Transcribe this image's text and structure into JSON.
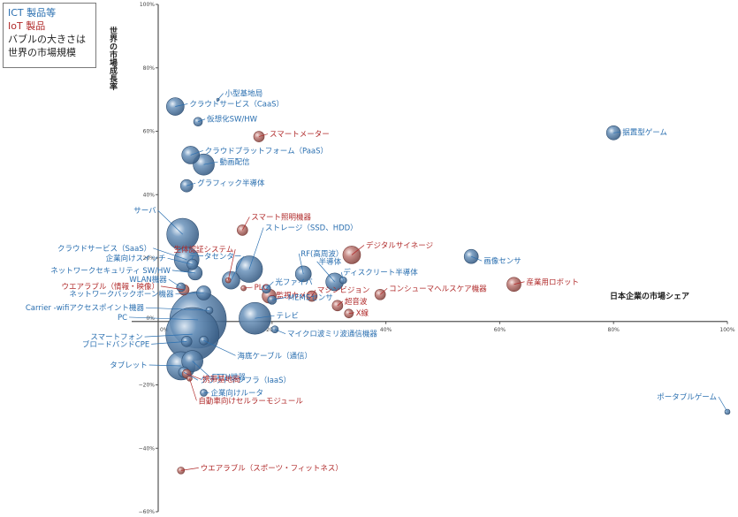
{
  "legend": {
    "ict": "ICT 製品等",
    "iot": "IoT 製品",
    "note1": "バブルの大きさは",
    "note2": "世界の市場規模"
  },
  "chart_data": {
    "type": "scatter",
    "xlabel": "日本企業の市場シェア",
    "ylabel": "世界の市場成長率",
    "xlim": [
      0,
      100
    ],
    "ylim": [
      -60,
      100
    ],
    "x_ticks": [
      "20%",
      "40%",
      "60%",
      "80%",
      "100%"
    ],
    "y_ticks": [
      "100%",
      "80%",
      "60%",
      "40%",
      "20%",
      "−20%",
      "−40%",
      "−60%"
    ],
    "origin_labels": [
      "0%",
      "0%"
    ],
    "colors": {
      "ict": "#5b86b0",
      "iot": "#b86a66",
      "ict_label": "#2a6fb0",
      "iot_label": "#b02a2a",
      "axis": "#555555"
    },
    "points": [
      {
        "label": "小型基地局",
        "cat": "ict",
        "x": 10.5,
        "y": 70.0,
        "r": 1.5
      },
      {
        "label": "クラウドサービス（CaaS）",
        "cat": "ict",
        "x": 3.0,
        "y": 67.8,
        "r": 10
      },
      {
        "label": "仮想化SW/HW",
        "cat": "ict",
        "x": 7.0,
        "y": 63.0,
        "r": 5
      },
      {
        "label": "スマートメーター",
        "cat": "iot",
        "x": 17.7,
        "y": 58.3,
        "r": 6
      },
      {
        "label": "クラウドプラットフォーム（PaaS）",
        "cat": "ict",
        "x": 5.7,
        "y": 52.5,
        "r": 10
      },
      {
        "label": "動画配信",
        "cat": "ict",
        "x": 8.0,
        "y": 49.5,
        "r": 12
      },
      {
        "label": "グラフィック半導体",
        "cat": "ict",
        "x": 5.0,
        "y": 42.8,
        "r": 7
      },
      {
        "label": "サーバ",
        "cat": "ict",
        "x": 4.3,
        "y": 27.5,
        "r": 18
      },
      {
        "label": "スマート照明機器",
        "cat": "iot",
        "x": 14.8,
        "y": 28.8,
        "r": 6
      },
      {
        "label": "デジタルサイネージ",
        "cat": "iot",
        "x": 34.0,
        "y": 21.0,
        "r": 10
      },
      {
        "label": "ストレージ（SSD、HDD）",
        "cat": "ict",
        "x": 16.0,
        "y": 16.5,
        "r": 15
      },
      {
        "label": "画像センサ",
        "cat": "ict",
        "x": 55.0,
        "y": 20.5,
        "r": 8
      },
      {
        "label": "生体認証システム",
        "cat": "iot",
        "x": 12.3,
        "y": 13.0,
        "r": 3
      },
      {
        "label": "データセンター",
        "cat": "ict",
        "x": 12.8,
        "y": 13.0,
        "r": 10
      },
      {
        "label": "RF(高周波）",
        "cat": "ict",
        "x": 25.5,
        "y": 15.0,
        "r": 9
      },
      {
        "label": "半導体",
        "cat": "ict",
        "x": 31.0,
        "y": 12.5,
        "r": 10
      },
      {
        "label": "ディスクリート半導体",
        "cat": "ict",
        "x": 32.5,
        "y": 13.0,
        "r": 4
      },
      {
        "label": "産業用ロボット",
        "cat": "iot",
        "x": 62.5,
        "y": 11.7,
        "r": 8
      },
      {
        "label": "クラウドサービス（SaaS）",
        "cat": "ict",
        "x": 5.0,
        "y": 19.5,
        "r": 14
      },
      {
        "label": "企業向けスイッチ",
        "cat": "ict",
        "x": 6.0,
        "y": 18.0,
        "r": 6
      },
      {
        "label": "ネットワークセキュリティ SW/HW",
        "cat": "ict",
        "x": 6.5,
        "y": 15.3,
        "r": 8
      },
      {
        "label": "WLAN機器",
        "cat": "ict",
        "x": 4.0,
        "y": 10.8,
        "r": 5
      },
      {
        "label": "ウエアラブル（情報・映像）",
        "cat": "iot",
        "x": 4.5,
        "y": 10.0,
        "r": 6
      },
      {
        "label": "ネットワークバックボーン機器",
        "cat": "ict",
        "x": 8.0,
        "y": 9.0,
        "r": 8
      },
      {
        "label": "光ファイバ",
        "cat": "ict",
        "x": 19.0,
        "y": 10.3,
        "r": 5
      },
      {
        "label": "PLC",
        "cat": "iot",
        "x": 15.0,
        "y": 10.5,
        "r": 3
      },
      {
        "label": "監視カメラ",
        "cat": "iot",
        "x": 19.5,
        "y": 8.0,
        "r": 8
      },
      {
        "label": "マシンビジョン",
        "cat": "iot",
        "x": 27.0,
        "y": 8.0,
        "r": 6
      },
      {
        "label": "MEMSセンサ",
        "cat": "ict",
        "x": 20.0,
        "y": 6.8,
        "r": 5
      },
      {
        "label": "コンシューマヘルスケア機器",
        "cat": "iot",
        "x": 39.0,
        "y": 8.5,
        "r": 6
      },
      {
        "label": "超音波",
        "cat": "iot",
        "x": 31.5,
        "y": 5.0,
        "r": 6
      },
      {
        "label": "X線",
        "cat": "iot",
        "x": 33.5,
        "y": 2.5,
        "r": 5
      },
      {
        "label": "Carrier -wifiアクセスポイント機器",
        "cat": "ict",
        "x": 9.0,
        "y": 3.5,
        "r": 4
      },
      {
        "label": "PC",
        "cat": "ict",
        "x": 7.0,
        "y": 0.5,
        "r": 32
      },
      {
        "label": "テレビ",
        "cat": "ict",
        "x": 17.0,
        "y": 1.0,
        "r": 18
      },
      {
        "label": "マイクロ波ミリ波通信機器",
        "cat": "ict",
        "x": 20.5,
        "y": -2.5,
        "r": 4
      },
      {
        "label": "スマートフォン",
        "cat": "ict",
        "x": 6.0,
        "y": -4.0,
        "r": 30
      },
      {
        "label": "ブロードバンドCPE",
        "cat": "ict",
        "x": 5.0,
        "y": -6.3,
        "r": 6
      },
      {
        "label": "海底ケーブル（通信）",
        "cat": "ict",
        "x": 8.0,
        "y": -6.0,
        "r": 5
      },
      {
        "label": "FTTH機器",
        "cat": "ict",
        "x": 6.0,
        "y": -12.5,
        "r": 12
      },
      {
        "label": "タブレット",
        "cat": "ict",
        "x": 4.0,
        "y": -14.0,
        "r": 16
      },
      {
        "label": "クラウドインフラ（IaaS）",
        "cat": "ict",
        "x": 4.5,
        "y": -16.0,
        "r": 6
      },
      {
        "label": "携帯基地局",
        "cat": "iot",
        "x": 5.0,
        "y": -16.5,
        "r": 5
      },
      {
        "label": "企業向けルータ",
        "cat": "ict",
        "x": 8.0,
        "y": -22.5,
        "r": 4
      },
      {
        "label": "自動車向けセルラーモジュール",
        "cat": "iot",
        "x": 5.5,
        "y": -18.0,
        "r": 3
      },
      {
        "label": "ウエアラブル（スポーツ・フィットネス）",
        "cat": "iot",
        "x": 4.0,
        "y": -47.0,
        "r": 4
      },
      {
        "label": "据置型ゲーム",
        "cat": "ict",
        "x": 80.0,
        "y": 59.5,
        "r": 8
      },
      {
        "label": "ポータブルゲーム",
        "cat": "ict",
        "x": 100.0,
        "y": -28.5,
        "r": 3
      }
    ]
  }
}
